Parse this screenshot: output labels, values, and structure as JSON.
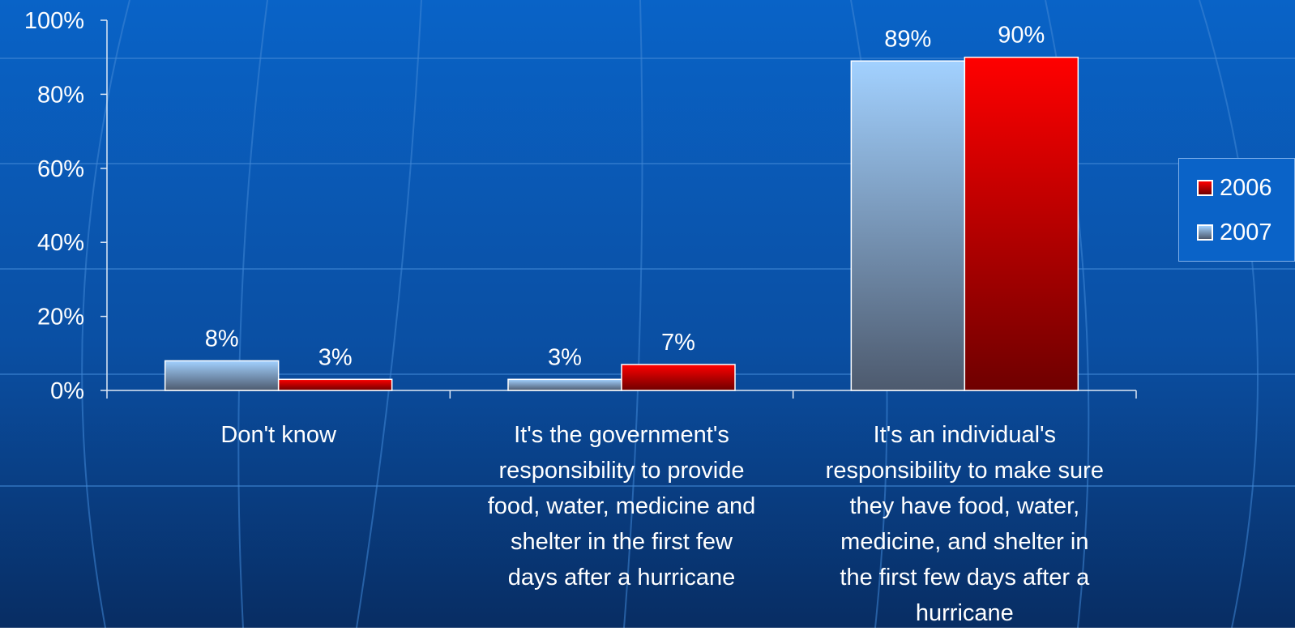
{
  "chart_data": {
    "type": "bar",
    "categories": [
      "Don't know",
      "It's the government's\nresponsibility to provide\nfood, water, medicine and\nshelter in the first few\ndays after a hurricane",
      "It's an individual's\nresponsibility to make sure\nthey have food, water,\nmedicine, and shelter in\nthe first few days after a\nhurricane"
    ],
    "series": [
      {
        "name": "2007",
        "values": [
          8,
          3,
          89
        ],
        "labels": [
          "8%",
          "3%",
          "89%"
        ],
        "color": "#9fcdfb"
      },
      {
        "name": "2006",
        "values": [
          3,
          7,
          90
        ],
        "labels": [
          "3%",
          "7%",
          "90%"
        ],
        "color": "#ff0000"
      }
    ],
    "ylim": [
      0,
      100
    ],
    "yticks": [
      "0%",
      "20%",
      "40%",
      "60%",
      "80%",
      "100%"
    ],
    "legend_position": "right",
    "legend_order": [
      "2006",
      "2007"
    ],
    "grid": false
  },
  "legend": {
    "item_2006": "2006",
    "item_2007": "2007"
  }
}
